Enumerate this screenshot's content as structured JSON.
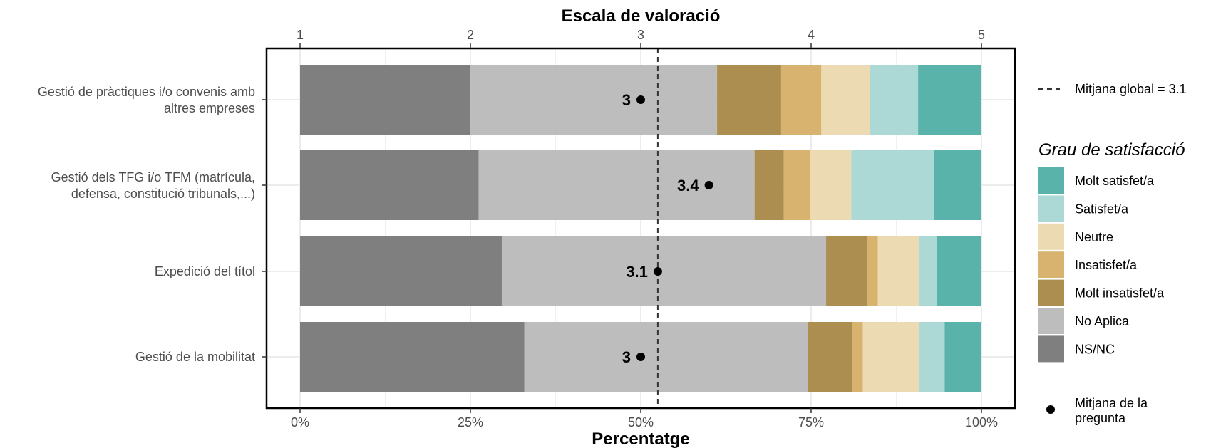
{
  "chart_data": {
    "type": "bar",
    "orientation": "horizontal",
    "stacked": true,
    "top_axis_title": "Escala de valoració",
    "bottom_axis_title": "Percentatge",
    "top_ticks": [
      "1",
      "2",
      "3",
      "4",
      "5"
    ],
    "bottom_ticks": [
      "0%",
      "25%",
      "50%",
      "75%",
      "100%"
    ],
    "xlim_percent": [
      0,
      100
    ],
    "xlim_scale": [
      1,
      5
    ],
    "grid": true,
    "categories": [
      [
        "Gestió de pràctiques i/o convenis amb",
        "altres empreses"
      ],
      [
        "Gestió dels TFG i/o TFM (matrícula,",
        "defensa, constitució tribunals,...)"
      ],
      [
        "Expedició del títol"
      ],
      [
        "Gestió de la mobilitat"
      ]
    ],
    "series": [
      {
        "name": "NS/NC",
        "color": "#7f7f7f",
        "values": [
          25.0,
          26.2,
          29.6,
          32.9
        ]
      },
      {
        "name": "No Aplica",
        "color": "#bdbdbd",
        "values": [
          36.2,
          40.5,
          47.6,
          41.6
        ]
      },
      {
        "name": "Molt insatisfet/a",
        "color": "#ab8e50",
        "values": [
          9.4,
          4.3,
          6.0,
          6.5
        ]
      },
      {
        "name": "Insatisfet/a",
        "color": "#d8b36f",
        "values": [
          5.9,
          3.8,
          1.6,
          1.6
        ]
      },
      {
        "name": "Neutre",
        "color": "#ecdbb2",
        "values": [
          7.1,
          6.1,
          6.0,
          8.2
        ]
      },
      {
        "name": "Satisfet/a",
        "color": "#acd9d5",
        "values": [
          7.1,
          12.1,
          2.7,
          3.8
        ]
      },
      {
        "name": "Molt satisfet/a",
        "color": "#5ab3aa",
        "values": [
          9.3,
          7.0,
          6.5,
          5.4
        ]
      }
    ],
    "question_means": [
      3.0,
      3.4,
      3.1,
      3.0
    ],
    "question_mean_labels": [
      "3",
      "3.4",
      "3.1",
      "3"
    ],
    "global_mean": 3.1,
    "legend": {
      "global_mean_label": "Mitjana global =  3.1",
      "title": "Grau de satisfacció",
      "items": [
        "Molt satisfet/a",
        "Satisfet/a",
        "Neutre",
        "Insatisfet/a",
        "Molt insatisfet/a",
        "No Aplica",
        "NS/NC"
      ],
      "mean_point_label": [
        "Mitjana de la",
        "pregunta"
      ],
      "placement": "right"
    }
  }
}
